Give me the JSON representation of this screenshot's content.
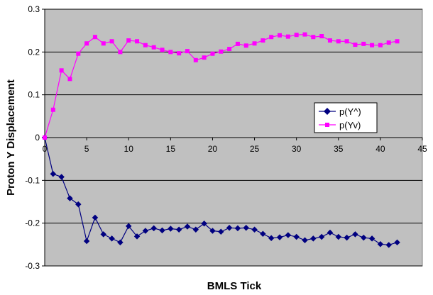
{
  "chart_data": {
    "type": "line",
    "title": "",
    "xlabel": "BMLS Tick",
    "ylabel": "Proton Y Displacement",
    "xlim": [
      0,
      45
    ],
    "ylim": [
      -0.3,
      0.3
    ],
    "x_ticks": [
      "0",
      "5",
      "10",
      "15",
      "20",
      "25",
      "30",
      "35",
      "40",
      "45"
    ],
    "y_ticks": [
      "0.3",
      "0.2",
      "0.1",
      "0",
      "-0.1",
      "-0.2",
      "-0.3"
    ],
    "grid": "horizontal major gridlines",
    "plot_background": "#c0c0c0",
    "legend_position": "right",
    "x": [
      0,
      1,
      2,
      3,
      4,
      5,
      6,
      7,
      8,
      9,
      10,
      11,
      12,
      13,
      14,
      15,
      16,
      17,
      18,
      19,
      20,
      21,
      22,
      23,
      24,
      25,
      26,
      27,
      28,
      29,
      30,
      31,
      32,
      33,
      34,
      35,
      36,
      37,
      38,
      39,
      40,
      41,
      42
    ],
    "series": [
      {
        "name": "p(Y^)",
        "color": "#000080",
        "marker": "diamond",
        "values": [
          0,
          -0.085,
          -0.092,
          -0.142,
          -0.156,
          -0.242,
          -0.187,
          -0.226,
          -0.236,
          -0.245,
          -0.207,
          -0.231,
          -0.218,
          -0.212,
          -0.217,
          -0.213,
          -0.215,
          -0.208,
          -0.215,
          -0.201,
          -0.218,
          -0.22,
          -0.211,
          -0.212,
          -0.211,
          -0.215,
          -0.225,
          -0.235,
          -0.233,
          -0.228,
          -0.232,
          -0.24,
          -0.236,
          -0.232,
          -0.222,
          -0.232,
          -0.234,
          -0.226,
          -0.234,
          -0.236,
          -0.249,
          -0.251,
          -0.245
        ]
      },
      {
        "name": "p(Yv)",
        "color": "#ff00ff",
        "marker": "square",
        "values": [
          0,
          0.065,
          0.157,
          0.137,
          0.196,
          0.22,
          0.235,
          0.22,
          0.225,
          0.2,
          0.227,
          0.225,
          0.216,
          0.211,
          0.205,
          0.2,
          0.197,
          0.202,
          0.181,
          0.187,
          0.196,
          0.201,
          0.207,
          0.219,
          0.215,
          0.22,
          0.227,
          0.235,
          0.239,
          0.236,
          0.24,
          0.241,
          0.235,
          0.237,
          0.227,
          0.225,
          0.225,
          0.217,
          0.219,
          0.216,
          0.216,
          0.222,
          0.225
        ]
      }
    ]
  }
}
